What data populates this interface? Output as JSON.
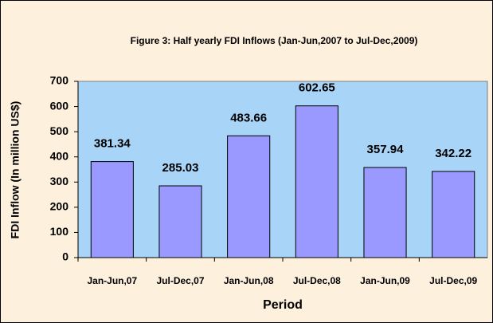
{
  "chart_data": {
    "type": "bar",
    "title": "Figure 3: Half yearly FDI Inflows (Jan-Jun,2007 to Jul-Dec,2009)",
    "x_label": "Period",
    "y_label": "FDI Inflow (In million US$)",
    "categories": [
      "Jan-Jun,07",
      "Jul-Dec,07",
      "Jan-Jun,08",
      "Jul-Dec,08",
      "Jan-Jun,09",
      "Jul-Dec,09"
    ],
    "values": [
      381.34,
      285.03,
      483.66,
      602.65,
      357.94,
      342.22
    ],
    "color": "#9999ff",
    "ylim": [
      0,
      700
    ],
    "yticks": [
      0,
      100,
      200,
      300,
      400,
      500,
      600,
      700
    ],
    "grid": false
  }
}
